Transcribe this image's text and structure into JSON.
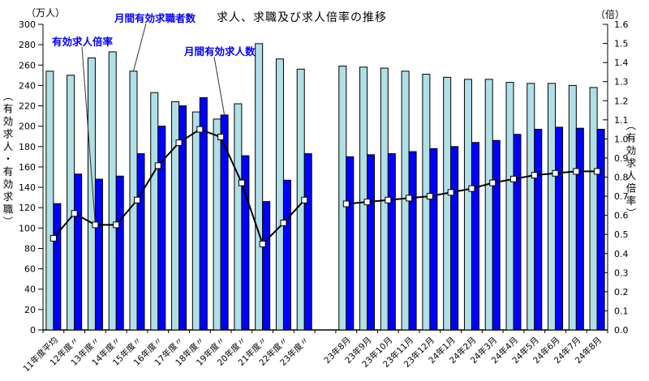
{
  "title": "求人、求職及び求人倍率の推移",
  "axes": {
    "left": {
      "unit": "（万人）",
      "title": "（有効求人・有効求職）"
    },
    "right": {
      "unit": "（倍）",
      "title": "（有効求人倍率）"
    }
  },
  "annotations": [
    {
      "text": "有効求人倍率",
      "points_to": {
        "series": "有効求人倍率",
        "category": "13年度〃"
      }
    },
    {
      "text": "月間有効求職者数",
      "points_to": {
        "series": "月間有効求職者数",
        "category": "15年度〃"
      }
    },
    {
      "text": "月間有効求人数",
      "points_to": {
        "series": "月間有効求人数",
        "category": "19年度〃"
      }
    }
  ],
  "colors": {
    "seekers_bar": "#B0E0E6",
    "openings_bar": "#0000FF",
    "bar_border": "#000000",
    "line": "#000000",
    "marker_fill": "#FFFFFF",
    "annotation_text": "#0000FF",
    "leader_line": "#333333"
  },
  "chart_data": {
    "type": "bar",
    "subtype": "dual-axis bar + line combo, two clusters separated by a gap",
    "title": "求人、求職及び求人倍率の推移",
    "categories": [
      "11年度平均",
      "12年度〃",
      "13年度〃",
      "14年度〃",
      "15年度〃",
      "16年度〃",
      "17年度〃",
      "18年度〃",
      "19年度〃",
      "20年度〃",
      "21年度〃",
      "22年度〃",
      "23年度〃",
      "",
      "23年8月",
      "23年9月",
      "23年10月",
      "23年11月",
      "23年12月",
      "24年1月",
      "24年2月",
      "24年3月",
      "24年4月",
      "24年5月",
      "24年6月",
      "24年7月",
      "24年8月"
    ],
    "series": [
      {
        "name": "月間有効求職者数",
        "kind": "bar",
        "axis": "left",
        "values": [
          254,
          250,
          267,
          273,
          254,
          233,
          224,
          214,
          207,
          222,
          281,
          266,
          256,
          null,
          259,
          258,
          257,
          254,
          251,
          248,
          246,
          246,
          243,
          242,
          242,
          240,
          238
        ]
      },
      {
        "name": "月間有効求人数",
        "kind": "bar",
        "axis": "left",
        "values": [
          124,
          153,
          148,
          151,
          173,
          200,
          220,
          228,
          211,
          171,
          126,
          147,
          173,
          null,
          170,
          172,
          173,
          175,
          178,
          180,
          184,
          186,
          192,
          197,
          199,
          198,
          197
        ]
      },
      {
        "name": "有効求人倍率",
        "kind": "line",
        "axis": "right",
        "values": [
          0.48,
          0.61,
          0.55,
          0.55,
          0.68,
          0.86,
          0.98,
          1.05,
          1.01,
          0.77,
          0.45,
          0.56,
          0.68,
          null,
          0.66,
          0.67,
          0.68,
          0.69,
          0.7,
          0.72,
          0.74,
          0.77,
          0.79,
          0.81,
          0.82,
          0.83,
          0.83
        ]
      }
    ],
    "left_ylabel": "（万人）",
    "right_ylabel": "（倍）",
    "left_ylim": [
      0,
      300
    ],
    "left_tick_step": 20,
    "right_ylim": [
      0,
      1.6
    ],
    "right_tick_step": 0.1,
    "grid": false,
    "legend": "none"
  }
}
